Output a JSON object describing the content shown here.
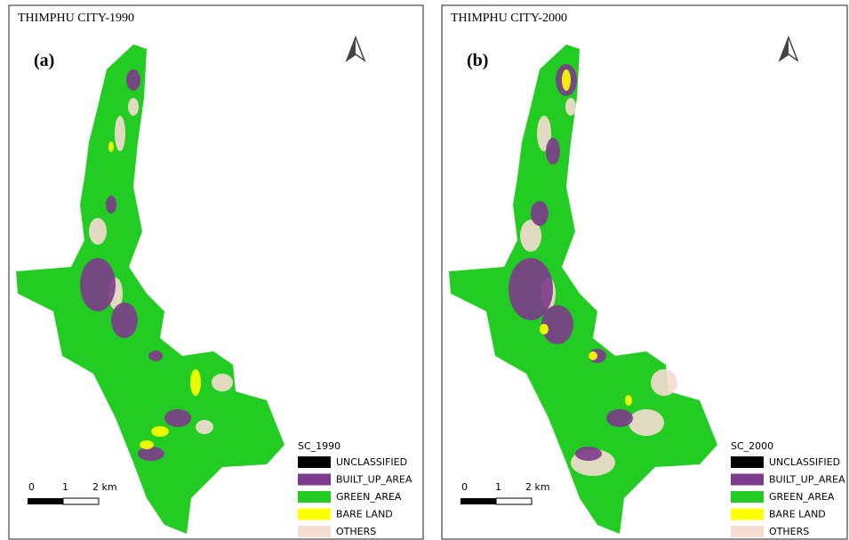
{
  "panels": [
    {
      "title": "THIMPHU CITY-1990",
      "label": "(a)",
      "legend": {
        "title": "SC_1990",
        "items": [
          {
            "label": "UNCLASSIFIED",
            "color": "#000000"
          },
          {
            "label": "BUILT_UP_AREA",
            "color": "#7d3a8c"
          },
          {
            "label": "GREEN_AREA",
            "color": "#22cc22"
          },
          {
            "label": "BARE LAND",
            "color": "#ffff00"
          },
          {
            "label": "OTHERS",
            "color": "#f5ddd2"
          }
        ]
      },
      "scale": [
        "0",
        "1",
        "2 km"
      ]
    },
    {
      "title": "THIMPHU CITY-2000",
      "label": "(b)",
      "legend": {
        "title": "SC_2000",
        "items": [
          {
            "label": "UNCLASSIFIED",
            "color": "#000000"
          },
          {
            "label": "BUILT_UP_AREA",
            "color": "#7d3a8c"
          },
          {
            "label": "GREEN_AREA",
            "color": "#22cc22"
          },
          {
            "label": "BARE LAND",
            "color": "#ffff00"
          },
          {
            "label": "OTHERS",
            "color": "#f5ddd2"
          }
        ]
      },
      "scale": [
        "0",
        "1",
        "2 km"
      ]
    }
  ]
}
